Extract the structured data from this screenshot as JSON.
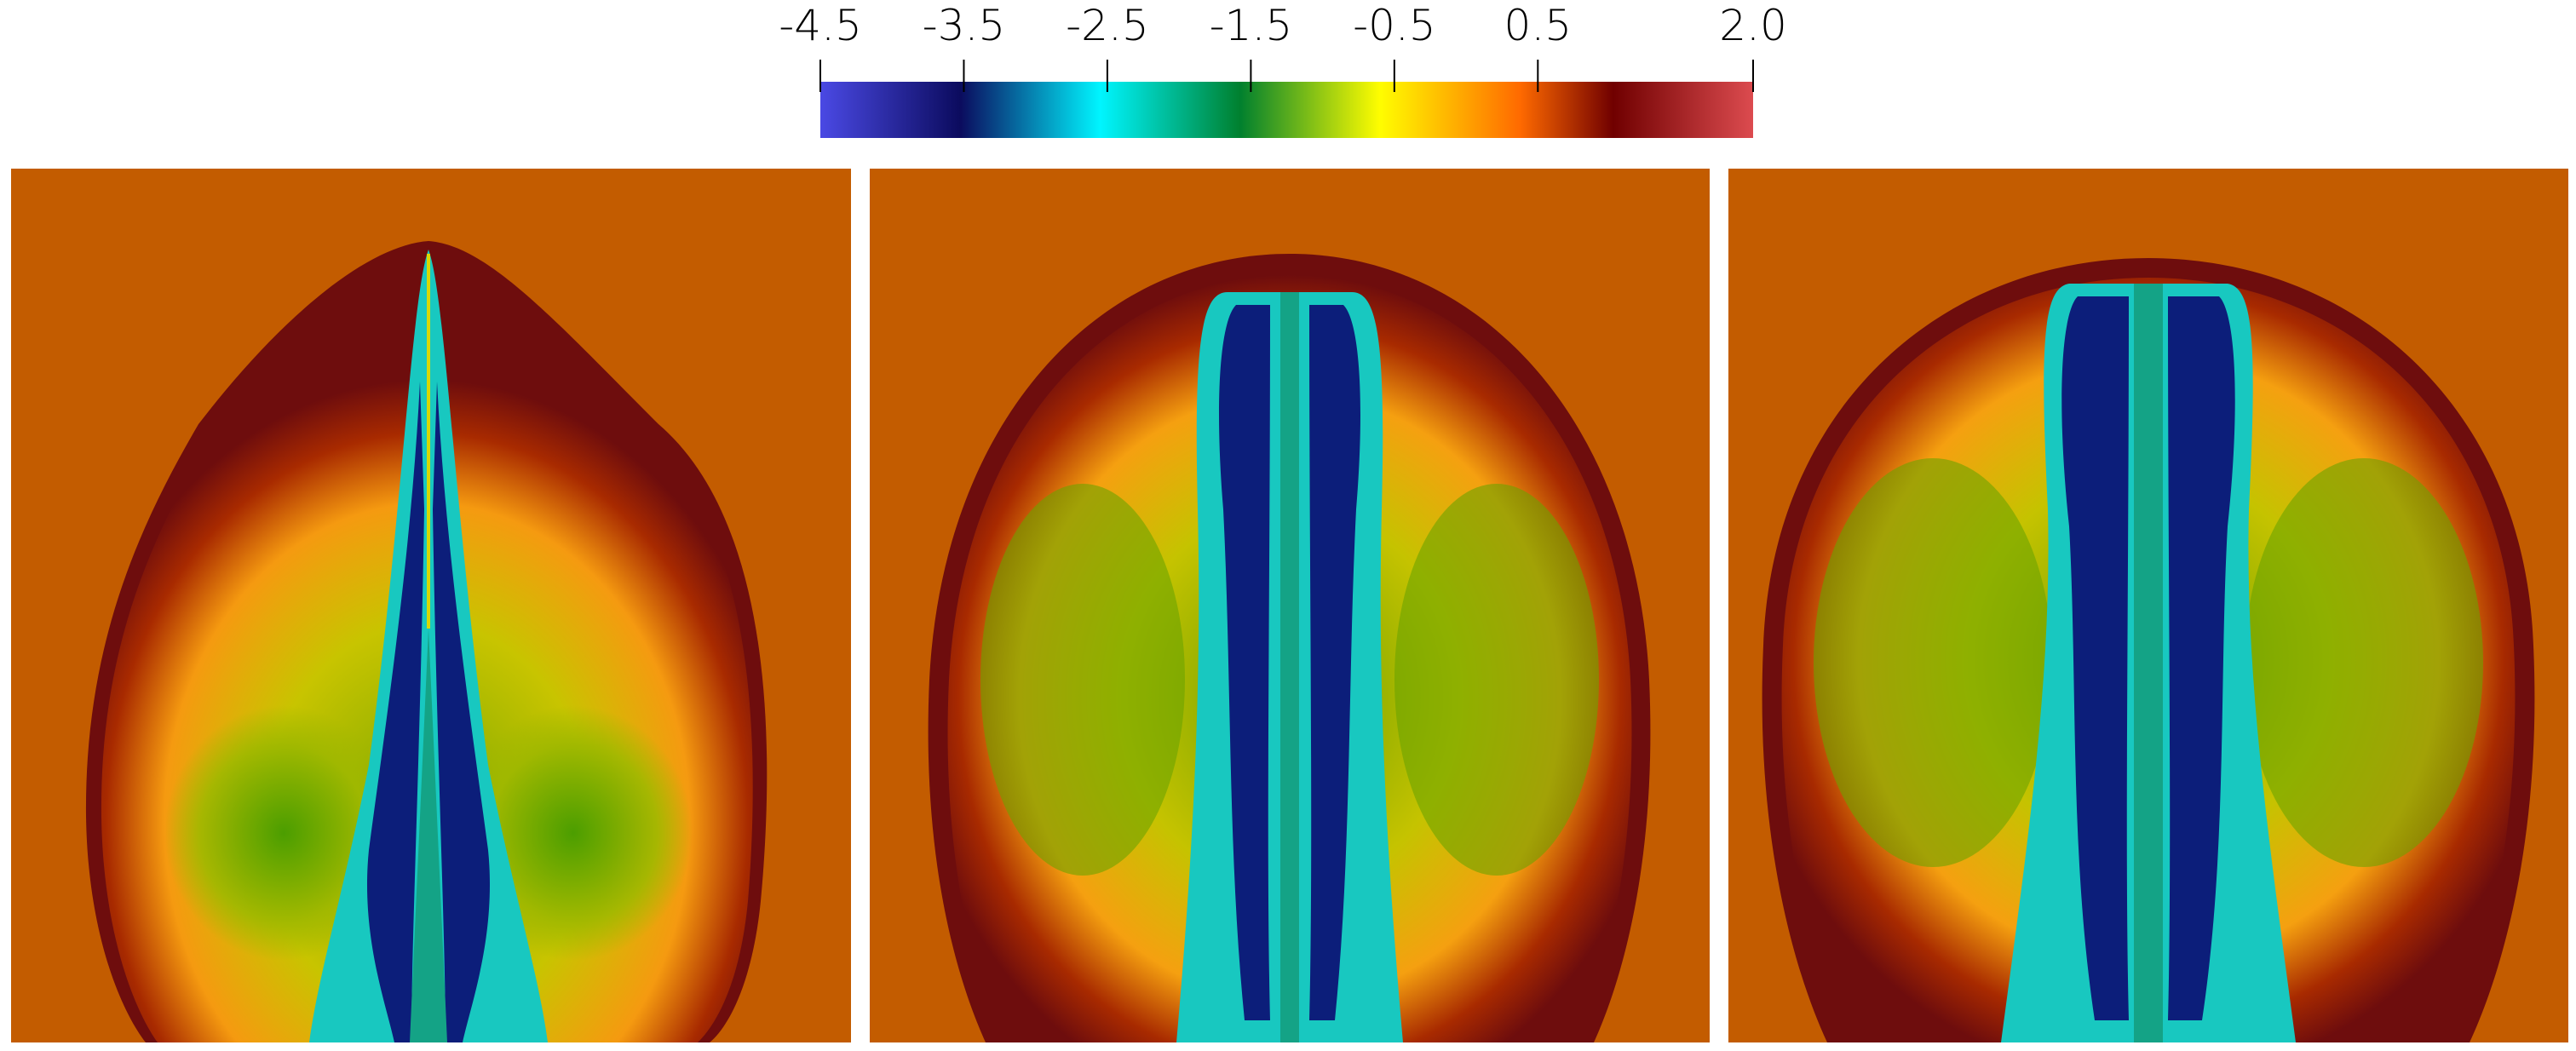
{
  "colorbar": {
    "min": -4.5,
    "max": 2.0,
    "tick_labels": [
      "-4.5",
      "-3.5",
      "-2.5",
      "-1.5",
      "-0.5",
      "0.5",
      "2.0"
    ],
    "tick_values": [
      -4.5,
      -3.5,
      -2.5,
      -1.5,
      -0.5,
      0.5,
      2.0
    ],
    "colors": [
      "#4a49e4",
      "#0b0b5e",
      "#00f5ff",
      "#00802e",
      "#fffd00",
      "#ff6a00",
      "#700000",
      "#dc4b4f"
    ]
  },
  "panels": [
    {
      "shape": "pointed-bubble",
      "background_color": "#c35c00"
    },
    {
      "shape": "round-bubble",
      "background_color": "#c35c00"
    },
    {
      "shape": "round-bubble-wide",
      "background_color": "#c35c00"
    }
  ]
}
